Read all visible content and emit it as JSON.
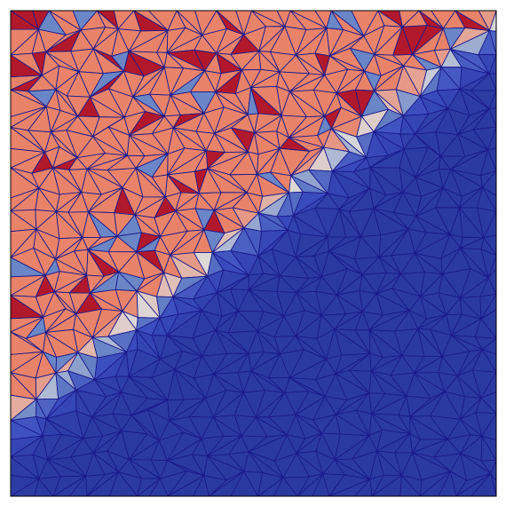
{
  "colors": {
    "background": "#ffffff",
    "frame": "#000000",
    "mesh_line": "#1a1a8c",
    "high": "#b2182b",
    "mid_high": "#e8836a",
    "mid": "#dcdcdc",
    "mid_low": "#6a86c6",
    "low": "#3b4cc0",
    "low_deep": "#2b3aa0"
  },
  "field": {
    "interface": "diagonal",
    "upper_left_region": "high",
    "lower_right_region": "low",
    "colormap": "cool-to-warm"
  }
}
